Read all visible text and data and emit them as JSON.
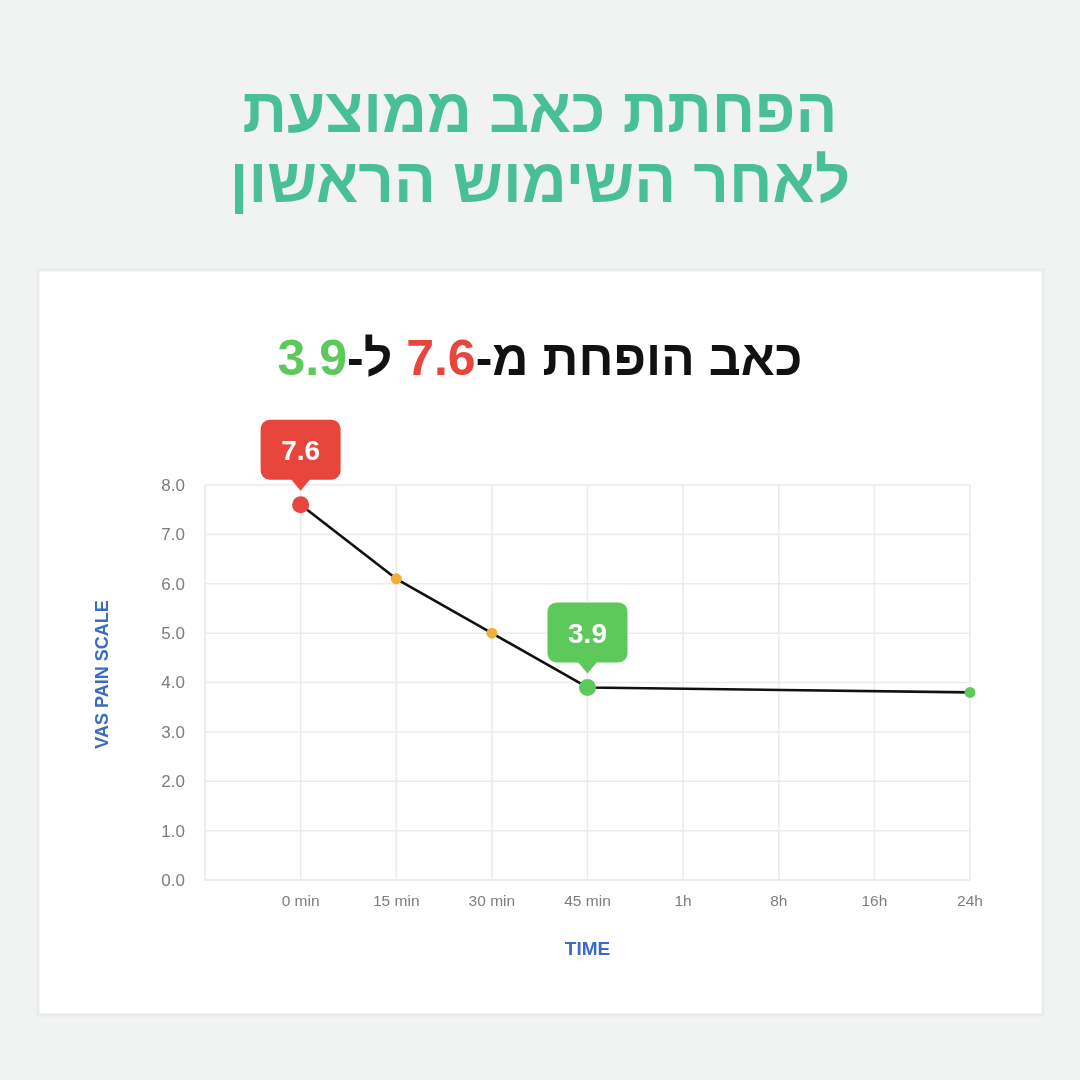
{
  "chart_data": {
    "type": "line",
    "title": "הפחתת כאב ממוצעת\nלאחר השימוש הראשון",
    "subtitle": "כאב הופחת מ-7.6 ל-3.9",
    "xlabel": "TIME",
    "ylabel": "VAS PAIN SCALE",
    "categories": [
      null,
      "0 min",
      "15 min",
      "30 min",
      "45 min",
      "1h",
      "8h",
      "16h",
      "24h"
    ],
    "series": [
      {
        "x": [
          "0 min",
          "15 min",
          "30 min",
          "45 min",
          "24h"
        ],
        "values": [
          7.6,
          6.1,
          5.0,
          3.9,
          3.8
        ],
        "color": "#111111",
        "colors": [
          "#e8453c",
          "#f0b035",
          "#f0b035",
          "#5dc95b",
          "#5dc95b"
        ],
        "value_labels": [
          "7.6",
          null,
          null,
          "3.9",
          null
        ]
      }
    ],
    "ylim": [
      0,
      8
    ],
    "yticks": [
      {
        "value": 0,
        "label": "0.0"
      },
      {
        "value": 1,
        "label": "1.0"
      },
      {
        "value": 2,
        "label": "2.0"
      },
      {
        "value": 3,
        "label": "3.0"
      },
      {
        "value": 4,
        "label": "4.0"
      },
      {
        "value": 5,
        "label": "5.0"
      },
      {
        "value": 6,
        "label": "6.0"
      },
      {
        "value": 7,
        "label": "7.0"
      },
      {
        "value": 8,
        "label": "8.0"
      }
    ],
    "grid": true,
    "marker": "circle"
  }
}
